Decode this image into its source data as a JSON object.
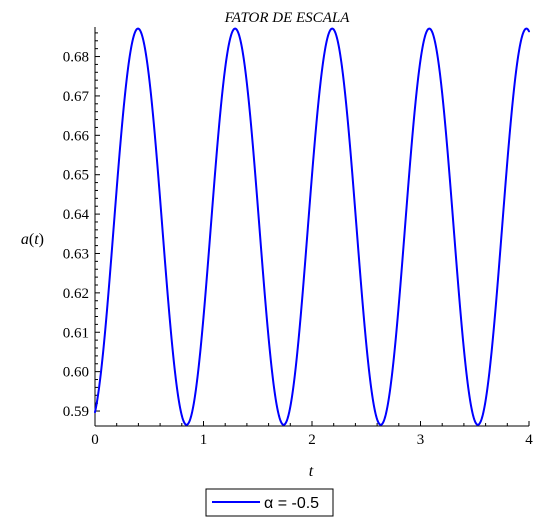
{
  "chart_data": {
    "type": "line",
    "title": "FATOR DE ESCALA",
    "xlabel": "t",
    "ylabel": "a(t)",
    "ylabel_parts": {
      "func": "a",
      "open": "(",
      "var": "t",
      "close": ")"
    },
    "xlim": [
      0,
      4
    ],
    "ylim": [
      0.5862,
      0.6875
    ],
    "x_ticks": [
      0,
      1,
      2,
      3,
      4
    ],
    "x_tick_labels": [
      "0",
      "1",
      "2",
      "3",
      "4"
    ],
    "y_ticks": [
      0.59,
      0.6,
      0.61,
      0.62,
      0.63,
      0.64,
      0.65,
      0.66,
      0.67,
      0.68
    ],
    "y_tick_labels": [
      "0.59",
      "0.60",
      "0.61",
      "0.62",
      "0.63",
      "0.64",
      "0.65",
      "0.66",
      "0.67",
      "0.68"
    ],
    "grid": false,
    "legend_position": "bottom",
    "series": [
      {
        "name": "α = -0.5",
        "color": "#0000ff",
        "model": {
          "mean": 0.6368,
          "amplitude": 0.0503,
          "period": 0.895,
          "phase_shift": 0.1725,
          "x_start": 0.0,
          "x_end": 4.0
        },
        "x": [
          0.0,
          0.4,
          0.85,
          1.3,
          1.74,
          2.19,
          2.64,
          3.09,
          3.53,
          3.98
        ],
        "y": [
          0.59,
          0.687,
          0.587,
          0.687,
          0.587,
          0.687,
          0.587,
          0.687,
          0.587,
          0.687
        ]
      }
    ]
  }
}
